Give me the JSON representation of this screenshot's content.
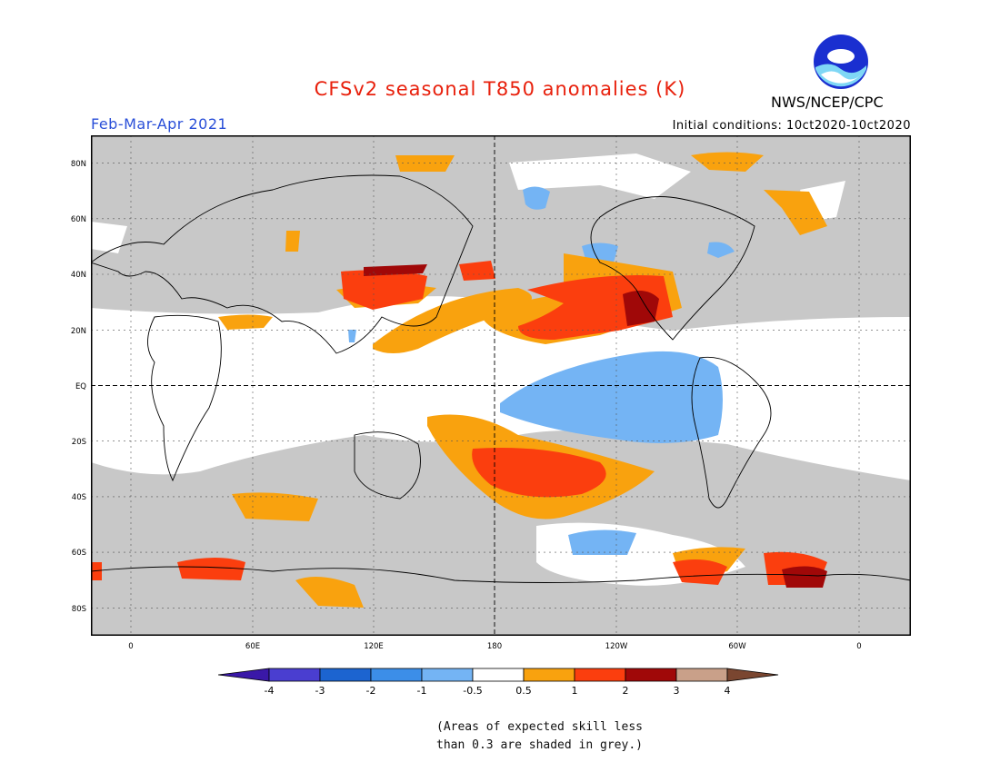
{
  "header": {
    "title": "CFSv2 seasonal T850 anomalies (K)",
    "period": "Feb-Mar-Apr 2021",
    "initial_conditions": "Initial conditions: 10ct2020-10ct2020",
    "agency": "NWS/NCEP/CPC",
    "logo_text": "NOAA"
  },
  "map": {
    "lat_labels": [
      "80N",
      "60N",
      "40N",
      "20N",
      "EQ",
      "20S",
      "40S",
      "60S",
      "80S"
    ],
    "lon_labels": [
      "0",
      "60E",
      "120E",
      "180",
      "120W",
      "60W",
      "0"
    ],
    "colors": {
      "grey_low_skill": "#c8c8c8",
      "land_outline": "#000000"
    }
  },
  "legend": {
    "tick_labels": [
      "-4",
      "-3",
      "-2",
      "-1",
      "-0.5",
      "0.5",
      "1",
      "2",
      "3",
      "4"
    ],
    "colors": [
      "#3a18a8",
      "#4a3ed0",
      "#1c64d0",
      "#3c8ee8",
      "#74b4f4",
      "#ffffff",
      "#f9a20e",
      "#fb3e0e",
      "#a00808",
      "#c9a089",
      "#7a4630"
    ]
  },
  "note": {
    "line1": "(Areas of expected skill less",
    "line2": "than 0.3 are shaded in grey.)"
  }
}
